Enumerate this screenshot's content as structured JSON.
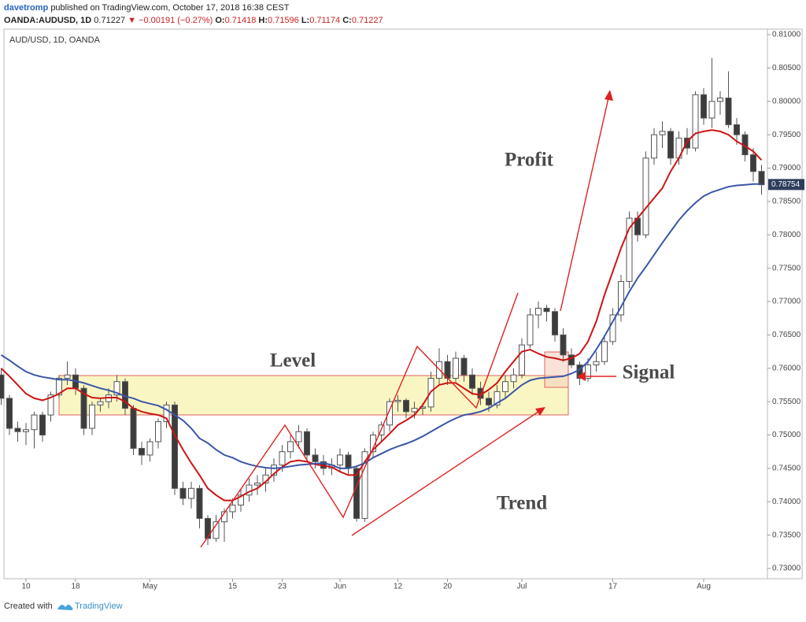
{
  "header": {
    "author": "davetromp",
    "published": "published on TradingView.com, October 17, 2018 16:38 CEST",
    "symbol": "OANDA:AUDUSD, 1D",
    "price": "0.71227",
    "change": "▼ −0.00191 (−0.27%)",
    "o_label": "O:",
    "o": "0.71418",
    "h_label": "H:",
    "h": "0.71596",
    "l_label": "L:",
    "l": "0.71174",
    "c_label": "C:",
    "c": "0.71227"
  },
  "footer": {
    "created": "Created with",
    "brand": "TradingView"
  },
  "chart_data": {
    "type": "candlestick",
    "title": "AUD/USD, 1D, OANDA",
    "annotations": {
      "level": "Level",
      "profit": "Profit",
      "signal": "Signal",
      "trend": "Trend"
    },
    "last_price": 0.78754,
    "up_color": "#ffffff",
    "down_color": "#3c3c3c",
    "edge_color": "#555555",
    "categories": [
      null,
      null,
      null,
      "10",
      null,
      null,
      null,
      null,
      null,
      "18",
      null,
      null,
      null,
      null,
      null,
      null,
      null,
      null,
      "May",
      null,
      null,
      null,
      null,
      null,
      null,
      null,
      null,
      null,
      "15",
      null,
      null,
      null,
      null,
      null,
      "23",
      null,
      null,
      null,
      null,
      null,
      null,
      "Jun",
      null,
      null,
      null,
      null,
      null,
      null,
      "12",
      null,
      null,
      null,
      null,
      null,
      "20",
      null,
      null,
      null,
      null,
      null,
      null,
      null,
      null,
      "Jul",
      null,
      null,
      null,
      null,
      null,
      null,
      null,
      null,
      null,
      null,
      "17",
      null,
      null,
      null,
      null,
      null,
      null,
      null,
      null,
      null,
      null,
      "Aug",
      null,
      null,
      null,
      null,
      null,
      null,
      null
    ],
    "ohlc": [
      [
        0.759,
        0.76,
        0.7545,
        0.7555
      ],
      [
        0.7555,
        0.756,
        0.75,
        0.751
      ],
      [
        0.751,
        0.752,
        0.749,
        0.7505
      ],
      [
        0.7505,
        0.7518,
        0.7485,
        0.7508
      ],
      [
        0.7508,
        0.7535,
        0.748,
        0.753
      ],
      [
        0.753,
        0.7535,
        0.749,
        0.75
      ],
      [
        0.753,
        0.7565,
        0.752,
        0.756
      ],
      [
        0.756,
        0.759,
        0.7555,
        0.7585
      ],
      [
        0.7585,
        0.761,
        0.7575,
        0.759
      ],
      [
        0.759,
        0.76,
        0.756,
        0.757
      ],
      [
        0.757,
        0.7575,
        0.75,
        0.751
      ],
      [
        0.751,
        0.755,
        0.75,
        0.7545
      ],
      [
        0.7545,
        0.7555,
        0.7535,
        0.755
      ],
      [
        0.755,
        0.757,
        0.754,
        0.756
      ],
      [
        0.756,
        0.759,
        0.755,
        0.758
      ],
      [
        0.758,
        0.7585,
        0.753,
        0.754
      ],
      [
        0.754,
        0.7545,
        0.747,
        0.748
      ],
      [
        0.748,
        0.749,
        0.7455,
        0.747
      ],
      [
        0.747,
        0.7495,
        0.746,
        0.749
      ],
      [
        0.749,
        0.7525,
        0.748,
        0.752
      ],
      [
        0.752,
        0.755,
        0.751,
        0.7545
      ],
      [
        0.7545,
        0.755,
        0.741,
        0.742
      ],
      [
        0.742,
        0.743,
        0.7395,
        0.7405
      ],
      [
        0.7405,
        0.743,
        0.739,
        0.742
      ],
      [
        0.742,
        0.7425,
        0.736,
        0.7375
      ],
      [
        0.7375,
        0.738,
        0.7335,
        0.7345
      ],
      [
        0.7345,
        0.738,
        0.734,
        0.737
      ],
      [
        0.737,
        0.739,
        0.734,
        0.7385
      ],
      [
        0.7385,
        0.7405,
        0.7375,
        0.7395
      ],
      [
        0.7395,
        0.742,
        0.7385,
        0.741
      ],
      [
        0.741,
        0.7435,
        0.74,
        0.7425
      ],
      [
        0.7425,
        0.744,
        0.741,
        0.7428
      ],
      [
        0.7428,
        0.745,
        0.7415,
        0.744
      ],
      [
        0.744,
        0.7465,
        0.743,
        0.7455
      ],
      [
        0.7455,
        0.7485,
        0.7445,
        0.7475
      ],
      [
        0.7475,
        0.75,
        0.7465,
        0.749
      ],
      [
        0.749,
        0.7515,
        0.748,
        0.7505
      ],
      [
        0.7505,
        0.751,
        0.746,
        0.747
      ],
      [
        0.747,
        0.748,
        0.745,
        0.746
      ],
      [
        0.746,
        0.747,
        0.744,
        0.745
      ],
      [
        0.745,
        0.7465,
        0.744,
        0.7455
      ],
      [
        0.7455,
        0.748,
        0.7445,
        0.747
      ],
      [
        0.747,
        0.7475,
        0.744,
        0.745
      ],
      [
        0.745,
        0.7455,
        0.737,
        0.7375
      ],
      [
        0.7375,
        0.748,
        0.737,
        0.7475
      ],
      [
        0.7475,
        0.7505,
        0.7465,
        0.75
      ],
      [
        0.75,
        0.752,
        0.749,
        0.7515
      ],
      [
        0.7515,
        0.7555,
        0.7505,
        0.755
      ],
      [
        0.755,
        0.756,
        0.7535,
        0.7552
      ],
      [
        0.7552,
        0.7555,
        0.7525,
        0.7535
      ],
      [
        0.7535,
        0.755,
        0.7525,
        0.754
      ],
      [
        0.754,
        0.7548,
        0.753,
        0.7542
      ],
      [
        0.7542,
        0.7595,
        0.7535,
        0.7585
      ],
      [
        0.7585,
        0.763,
        0.7575,
        0.761
      ],
      [
        0.761,
        0.762,
        0.7575,
        0.7585
      ],
      [
        0.7585,
        0.7625,
        0.758,
        0.7615
      ],
      [
        0.7615,
        0.762,
        0.758,
        0.759
      ],
      [
        0.759,
        0.76,
        0.756,
        0.757
      ],
      [
        0.757,
        0.758,
        0.7545,
        0.7555
      ],
      [
        0.7555,
        0.7565,
        0.7535,
        0.7545
      ],
      [
        0.7545,
        0.7575,
        0.754,
        0.7565
      ],
      [
        0.7565,
        0.759,
        0.7555,
        0.758
      ],
      [
        0.758,
        0.76,
        0.757,
        0.759
      ],
      [
        0.759,
        0.7645,
        0.7585,
        0.7635
      ],
      [
        0.7635,
        0.769,
        0.763,
        0.768
      ],
      [
        0.768,
        0.77,
        0.766,
        0.769
      ],
      [
        0.769,
        0.7695,
        0.767,
        0.7685
      ],
      [
        0.7685,
        0.769,
        0.764,
        0.765
      ],
      [
        0.765,
        0.766,
        0.761,
        0.762
      ],
      [
        0.762,
        0.763,
        0.76,
        0.7605
      ],
      [
        0.7605,
        0.761,
        0.7575,
        0.7585
      ],
      [
        0.7585,
        0.7615,
        0.758,
        0.7605
      ],
      [
        0.7605,
        0.7625,
        0.7595,
        0.761
      ],
      [
        0.761,
        0.765,
        0.7605,
        0.764
      ],
      [
        0.764,
        0.769,
        0.7635,
        0.768
      ],
      [
        0.768,
        0.774,
        0.767,
        0.773
      ],
      [
        0.773,
        0.7835,
        0.772,
        0.7825
      ],
      [
        0.7825,
        0.7835,
        0.779,
        0.78
      ],
      [
        0.78,
        0.7925,
        0.7795,
        0.7915
      ],
      [
        0.7915,
        0.796,
        0.7905,
        0.795
      ],
      [
        0.795,
        0.797,
        0.793,
        0.7955
      ],
      [
        0.7955,
        0.796,
        0.7905,
        0.7915
      ],
      [
        0.7915,
        0.7955,
        0.7905,
        0.7945
      ],
      [
        0.7945,
        0.796,
        0.792,
        0.793
      ],
      [
        0.793,
        0.8015,
        0.7925,
        0.801
      ],
      [
        0.801,
        0.802,
        0.7965,
        0.7975
      ],
      [
        0.7975,
        0.8065,
        0.796,
        0.8
      ],
      [
        0.8,
        0.8015,
        0.798,
        0.8005
      ],
      [
        0.8005,
        0.8045,
        0.796,
        0.7965
      ],
      [
        0.7965,
        0.7975,
        0.7935,
        0.795
      ],
      [
        0.795,
        0.7955,
        0.791,
        0.792
      ],
      [
        0.792,
        0.793,
        0.788,
        0.7895
      ],
      [
        0.7895,
        0.7905,
        0.786,
        0.7875
      ]
    ],
    "lines": [
      {
        "color": "#cc1414",
        "values": [
          0.76,
          0.7588,
          0.7575,
          0.7562,
          0.7555,
          0.7552,
          0.7556,
          0.7562,
          0.757,
          0.757,
          0.7562,
          0.7556,
          0.7555,
          0.7556,
          0.7556,
          0.755,
          0.754,
          0.7535,
          0.7532,
          0.753,
          0.7525,
          0.75,
          0.7478,
          0.7458,
          0.744,
          0.742,
          0.741,
          0.7402,
          0.7402,
          0.7408,
          0.7415,
          0.742,
          0.743,
          0.7442,
          0.7452,
          0.746,
          0.7462,
          0.746,
          0.7456,
          0.7454,
          0.7452,
          0.7445,
          0.744,
          0.744,
          0.746,
          0.7478,
          0.749,
          0.7502,
          0.7515,
          0.7522,
          0.753,
          0.7545,
          0.7565,
          0.7575,
          0.7578,
          0.7578,
          0.757,
          0.7562,
          0.756,
          0.7568,
          0.7578,
          0.7595,
          0.761,
          0.7625,
          0.7628,
          0.7622,
          0.7617,
          0.7615,
          0.7612,
          0.7615,
          0.7622,
          0.764,
          0.767,
          0.771,
          0.7745,
          0.778,
          0.781,
          0.7825,
          0.784,
          0.7855,
          0.787,
          0.7895,
          0.7915,
          0.794,
          0.7952,
          0.7955,
          0.7957,
          0.7955,
          0.795,
          0.794,
          0.7933,
          0.7925,
          0.7912
        ]
      },
      {
        "color": "#3a56a8",
        "values": [
          0.762,
          0.7612,
          0.7603,
          0.7595,
          0.759,
          0.7587,
          0.7585,
          0.7583,
          0.7583,
          0.7581,
          0.7578,
          0.7574,
          0.757,
          0.7567,
          0.7563,
          0.7558,
          0.7555,
          0.755,
          0.7547,
          0.7544,
          0.7538,
          0.753,
          0.7522,
          0.751,
          0.7495,
          0.7488,
          0.7478,
          0.747,
          0.7466,
          0.746,
          0.7456,
          0.7453,
          0.7451,
          0.745,
          0.7451,
          0.7453,
          0.7455,
          0.7456,
          0.7457,
          0.7458,
          0.7455,
          0.745,
          0.745,
          0.7453,
          0.7458,
          0.7466,
          0.7472,
          0.7478,
          0.7483,
          0.7487,
          0.7492,
          0.7498,
          0.7505,
          0.7512,
          0.7519,
          0.7525,
          0.753,
          0.7532,
          0.7535,
          0.754,
          0.7548,
          0.7555,
          0.7565,
          0.7575,
          0.7582,
          0.7585,
          0.7586,
          0.7587,
          0.7588,
          0.7592,
          0.7598,
          0.761,
          0.7628,
          0.7648,
          0.767,
          0.7692,
          0.7715,
          0.7735,
          0.7752,
          0.777,
          0.7788,
          0.7805,
          0.7822,
          0.7836,
          0.7848,
          0.7858,
          0.7864,
          0.7868,
          0.7872,
          0.7874,
          0.7875,
          0.7876,
          0.7876
        ]
      }
    ],
    "ylim": [
      0.73,
      0.81
    ],
    "yticks": [
      {
        "value": 0.73,
        "label": "0.73000"
      },
      {
        "value": 0.735,
        "label": "0.73500"
      },
      {
        "value": 0.74,
        "label": "0.74000"
      },
      {
        "value": 0.745,
        "label": "0.74500"
      },
      {
        "value": 0.75,
        "label": "0.75000"
      },
      {
        "value": 0.755,
        "label": "0.75500"
      },
      {
        "value": 0.76,
        "label": "0.76000"
      },
      {
        "value": 0.765,
        "label": "0.76500"
      },
      {
        "value": 0.77,
        "label": "0.77000"
      },
      {
        "value": 0.775,
        "label": "0.77500"
      },
      {
        "value": 0.78,
        "label": "0.78000"
      },
      {
        "value": 0.785,
        "label": "0.78500"
      },
      {
        "value": 0.79,
        "label": "0.79000"
      },
      {
        "value": 0.795,
        "label": "0.79500"
      },
      {
        "value": 0.8,
        "label": "0.80000"
      },
      {
        "value": 0.805,
        "label": "0.80500"
      },
      {
        "value": 0.81,
        "label": "0.81000"
      }
    ]
  }
}
